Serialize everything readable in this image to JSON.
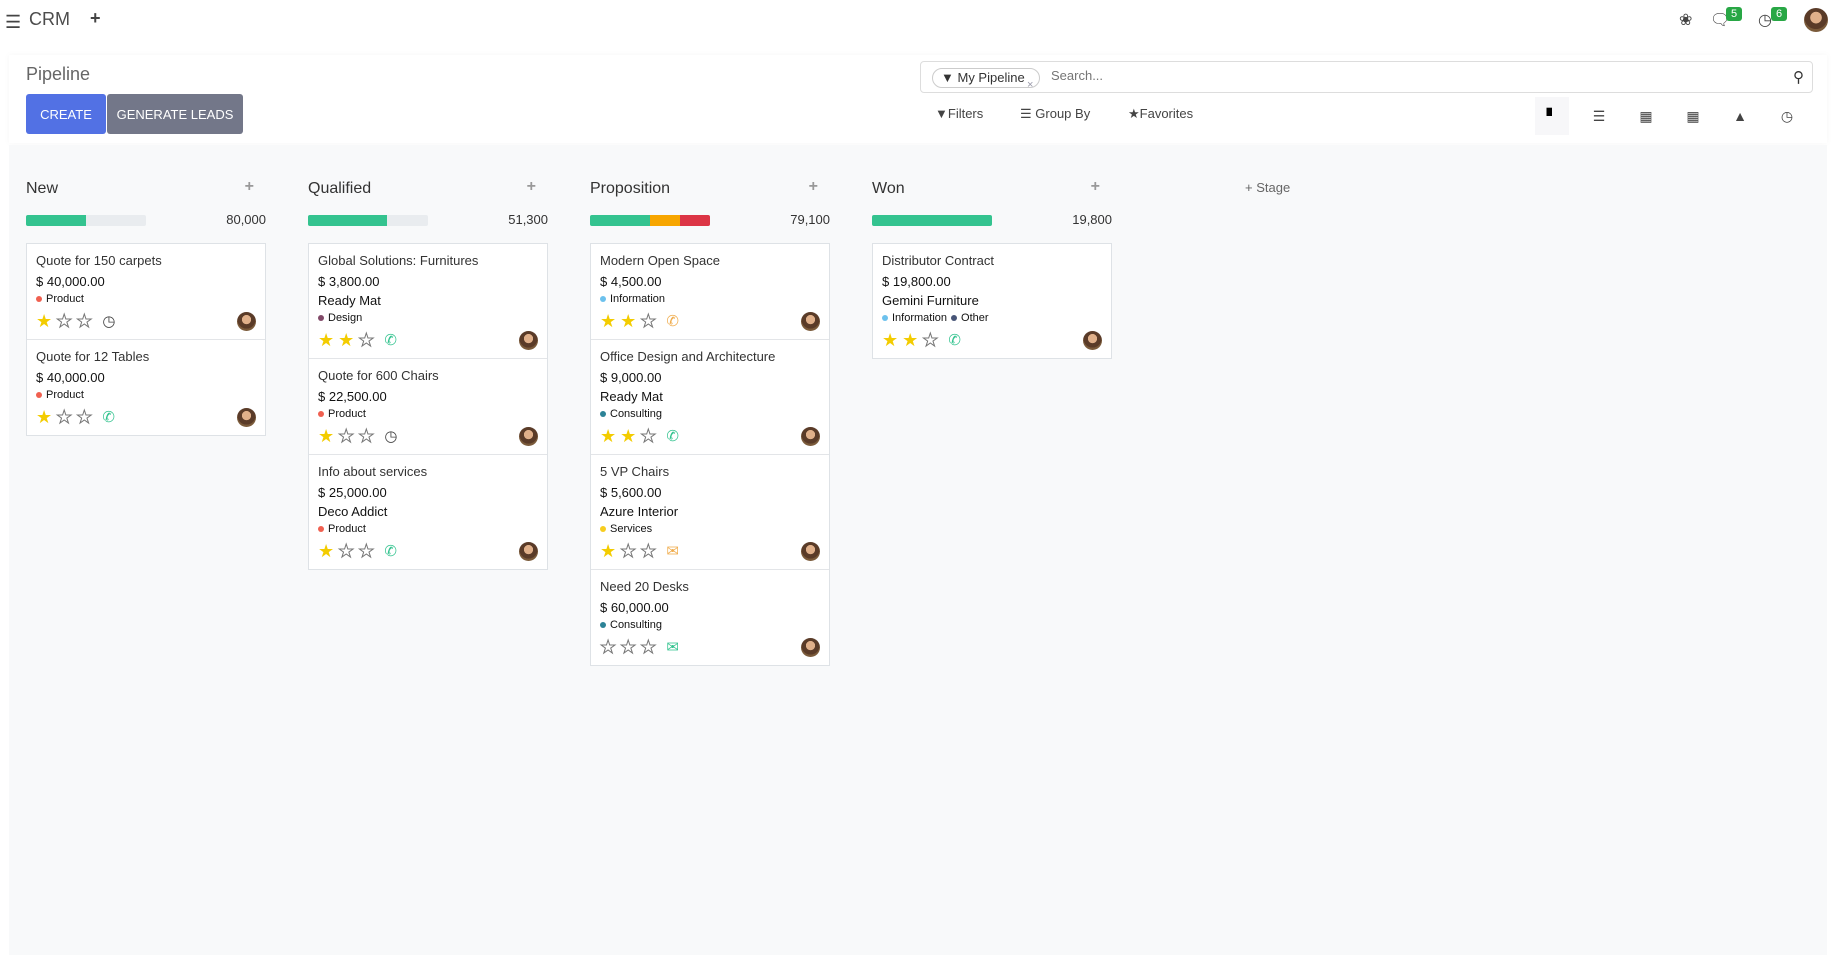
{
  "topbar": {
    "app": "CRM",
    "messages_count": "5",
    "activities_count": "6"
  },
  "control": {
    "title": "Pipeline",
    "create": "CREATE",
    "generate": "GENERATE LEADS",
    "facet": "My Pipeline",
    "search_placeholder": "Search...",
    "filters": "Filters",
    "group_by": "Group By",
    "favorites": "Favorites",
    "views": [
      "kanban",
      "list",
      "calendar",
      "pivot",
      "graph",
      "activity"
    ],
    "active_view": "kanban"
  },
  "colors": {
    "primary": "#5271e4",
    "secondary": "#737789",
    "green": "#34c38f",
    "orange": "#f7a600",
    "red": "#dc3545",
    "star": "#f3cc00"
  },
  "add_stage": "Stage",
  "columns": [
    {
      "name": "New",
      "total": "80,000",
      "progress": [
        {
          "color": "#34c38f",
          "pct": 50
        }
      ],
      "cards": [
        {
          "name": "Quote for 150 carpets",
          "amount": "$ 40,000.00",
          "company": "",
          "tags": [
            {
              "label": "Product",
              "color": "#f06050"
            }
          ],
          "stars": 1,
          "activity": "clock",
          "activity_color": "#444"
        },
        {
          "name": "Quote for 12 Tables",
          "amount": "$ 40,000.00",
          "company": "",
          "tags": [
            {
              "label": "Product",
              "color": "#f06050"
            }
          ],
          "stars": 1,
          "activity": "phone",
          "activity_color": "#34c38f"
        }
      ]
    },
    {
      "name": "Qualified",
      "total": "51,300",
      "progress": [
        {
          "color": "#34c38f",
          "pct": 66
        }
      ],
      "cards": [
        {
          "name": "Global Solutions: Furnitures",
          "amount": "$ 3,800.00",
          "company": "Ready Mat",
          "tags": [
            {
              "label": "Design",
              "color": "#814968"
            }
          ],
          "stars": 2,
          "activity": "phone",
          "activity_color": "#34c38f"
        },
        {
          "name": "Quote for 600 Chairs",
          "amount": "$ 22,500.00",
          "company": "",
          "tags": [
            {
              "label": "Product",
              "color": "#f06050"
            }
          ],
          "stars": 1,
          "activity": "clock",
          "activity_color": "#444"
        },
        {
          "name": "Info about services",
          "amount": "$ 25,000.00",
          "company": "Deco Addict",
          "tags": [
            {
              "label": "Product",
              "color": "#f06050"
            }
          ],
          "stars": 1,
          "activity": "phone",
          "activity_color": "#34c38f"
        }
      ]
    },
    {
      "name": "Proposition",
      "total": "79,100",
      "progress": [
        {
          "color": "#34c38f",
          "pct": 50
        },
        {
          "color": "#f7a600",
          "pct": 25
        },
        {
          "color": "#dc3545",
          "pct": 25
        }
      ],
      "cards": [
        {
          "name": "Modern Open Space",
          "amount": "$ 4,500.00",
          "company": "",
          "tags": [
            {
              "label": "Information",
              "color": "#6cc1ed"
            }
          ],
          "stars": 2,
          "activity": "phone",
          "activity_color": "#f0ad4e"
        },
        {
          "name": "Office Design and Architecture",
          "amount": "$ 9,000.00",
          "company": "Ready Mat",
          "tags": [
            {
              "label": "Consulting",
              "color": "#2c8397"
            }
          ],
          "stars": 2,
          "activity": "phone",
          "activity_color": "#34c38f"
        },
        {
          "name": "5 VP Chairs",
          "amount": "$ 5,600.00",
          "company": "Azure Interior",
          "tags": [
            {
              "label": "Services",
              "color": "#f7cd1f"
            }
          ],
          "stars": 1,
          "activity": "envelope",
          "activity_color": "#f0ad4e"
        },
        {
          "name": "Need 20 Desks",
          "amount": "$ 60,000.00",
          "company": "",
          "tags": [
            {
              "label": "Consulting",
              "color": "#2c8397"
            }
          ],
          "stars": 0,
          "activity": "envelope",
          "activity_color": "#34c38f"
        }
      ]
    },
    {
      "name": "Won",
      "total": "19,800",
      "progress": [
        {
          "color": "#34c38f",
          "pct": 100
        }
      ],
      "cards": [
        {
          "name": "Distributor Contract",
          "amount": "$ 19,800.00",
          "company": "Gemini Furniture",
          "tags": [
            {
              "label": "Information",
              "color": "#6cc1ed"
            },
            {
              "label": "Other",
              "color": "#475577"
            }
          ],
          "stars": 2,
          "activity": "phone",
          "activity_color": "#34c38f"
        }
      ]
    }
  ]
}
